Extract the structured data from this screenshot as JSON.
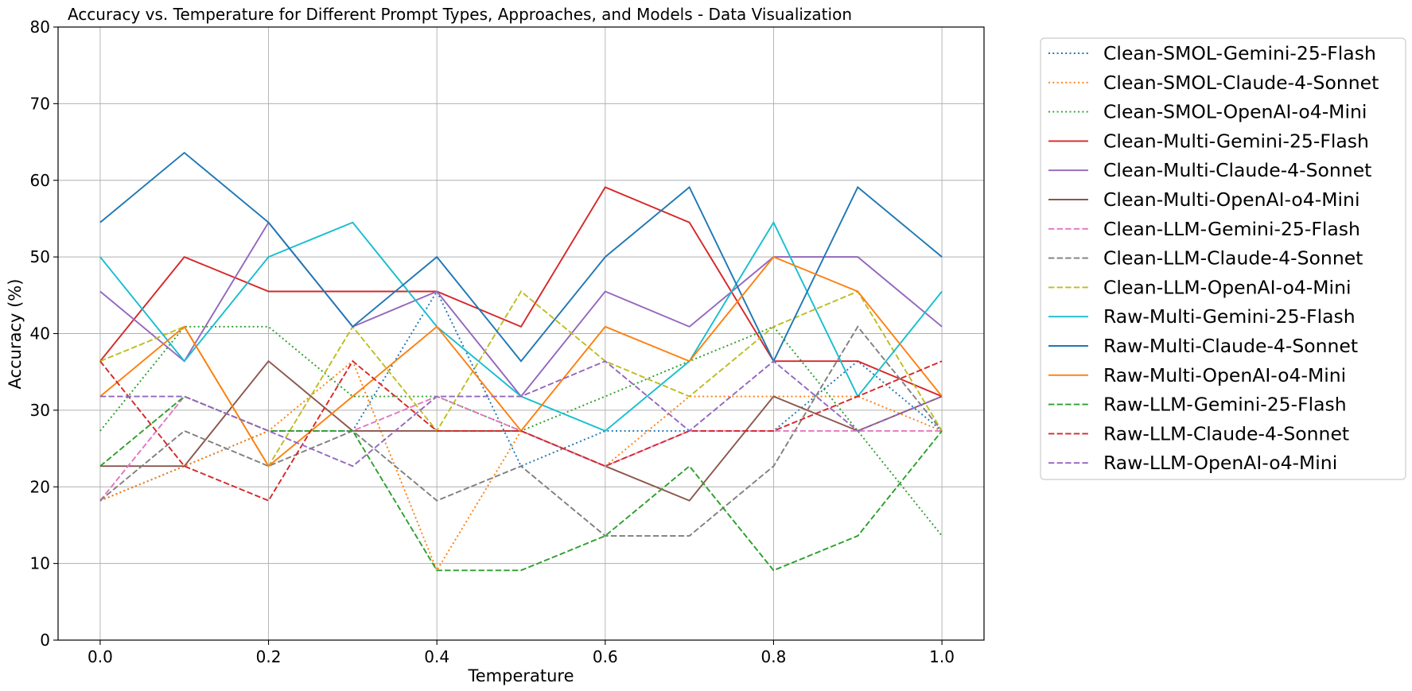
{
  "chart_data": {
    "type": "line",
    "title": "Accuracy vs. Temperature for Different Prompt Types, Approaches, and Models - Data Visualization",
    "xlabel": "Temperature",
    "ylabel": "Accuracy (%)",
    "xlim": [
      -0.05,
      1.05
    ],
    "ylim": [
      0,
      80
    ],
    "xticks": [
      "0.0",
      "0.2",
      "0.4",
      "0.6",
      "0.8",
      "1.0"
    ],
    "yticks": [
      "0",
      "10",
      "20",
      "30",
      "40",
      "50",
      "60",
      "70",
      "80"
    ],
    "grid": true,
    "legend_position": "outside-right",
    "x": [
      0.0,
      0.1,
      0.2,
      0.3,
      0.4,
      0.5,
      0.6,
      0.7,
      0.8,
      0.9,
      1.0
    ],
    "series": [
      {
        "name": "Clean-SMOL-Gemini-25-Flash",
        "color": "#1f77b4",
        "style": "dotted",
        "values": [
          18.2,
          22.7,
          27.3,
          27.3,
          45.5,
          22.7,
          27.3,
          27.3,
          27.3,
          36.4,
          27.3
        ]
      },
      {
        "name": "Clean-SMOL-Claude-4-Sonnet",
        "color": "#ff7f0e",
        "style": "dotted",
        "values": [
          18.2,
          22.7,
          27.3,
          36.4,
          9.1,
          27.3,
          22.7,
          31.8,
          31.8,
          31.8,
          27.3
        ]
      },
      {
        "name": "Clean-SMOL-OpenAI-o4-Mini",
        "color": "#2ca02c",
        "style": "dotted",
        "values": [
          27.3,
          40.9,
          40.9,
          31.8,
          31.8,
          27.3,
          31.8,
          36.4,
          40.9,
          27.3,
          13.6
        ]
      },
      {
        "name": "Clean-Multi-Gemini-25-Flash",
        "color": "#d62728",
        "style": "solid",
        "values": [
          36.4,
          50.0,
          45.5,
          45.5,
          45.5,
          40.9,
          59.1,
          54.5,
          36.4,
          36.4,
          31.8
        ]
      },
      {
        "name": "Clean-Multi-Claude-4-Sonnet",
        "color": "#9467bd",
        "style": "solid",
        "values": [
          45.5,
          36.4,
          54.5,
          40.9,
          45.5,
          31.8,
          45.5,
          40.9,
          50.0,
          50.0,
          40.9
        ]
      },
      {
        "name": "Clean-Multi-OpenAI-o4-Mini",
        "color": "#8c564b",
        "style": "solid",
        "values": [
          22.7,
          22.7,
          36.4,
          27.3,
          27.3,
          27.3,
          22.7,
          18.2,
          31.8,
          27.3,
          31.8
        ]
      },
      {
        "name": "Clean-LLM-Gemini-25-Flash",
        "color": "#e377c2",
        "style": "dashed",
        "values": [
          18.2,
          31.8,
          27.3,
          27.3,
          31.8,
          27.3,
          22.7,
          27.3,
          27.3,
          27.3,
          27.3
        ]
      },
      {
        "name": "Clean-LLM-Claude-4-Sonnet",
        "color": "#7f7f7f",
        "style": "dashed",
        "values": [
          18.2,
          27.3,
          22.7,
          27.3,
          18.2,
          22.7,
          13.6,
          13.6,
          22.7,
          40.9,
          27.3
        ]
      },
      {
        "name": "Clean-LLM-OpenAI-o4-Mini",
        "color": "#bcbd22",
        "style": "dashed",
        "values": [
          36.4,
          40.9,
          22.7,
          40.9,
          27.3,
          45.5,
          36.4,
          31.8,
          40.9,
          45.5,
          27.3
        ]
      },
      {
        "name": "Raw-Multi-Gemini-25-Flash",
        "color": "#17becf",
        "style": "solid",
        "values": [
          50.0,
          36.4,
          50.0,
          54.5,
          40.9,
          31.8,
          27.3,
          36.4,
          54.5,
          31.8,
          45.5
        ]
      },
      {
        "name": "Raw-Multi-Claude-4-Sonnet",
        "color": "#1f77b4",
        "style": "solid",
        "values": [
          54.5,
          63.6,
          54.5,
          40.9,
          50.0,
          36.4,
          50.0,
          59.1,
          36.4,
          59.1,
          50.0
        ]
      },
      {
        "name": "Raw-Multi-OpenAI-o4-Mini",
        "color": "#ff7f0e",
        "style": "solid",
        "values": [
          31.8,
          40.9,
          22.7,
          31.8,
          40.9,
          27.3,
          40.9,
          36.4,
          50.0,
          45.5,
          31.8
        ]
      },
      {
        "name": "Raw-LLM-Gemini-25-Flash",
        "color": "#2ca02c",
        "style": "dashed",
        "values": [
          22.7,
          31.8,
          27.3,
          27.3,
          9.1,
          9.1,
          13.6,
          22.7,
          9.1,
          13.6,
          27.3
        ]
      },
      {
        "name": "Raw-LLM-Claude-4-Sonnet",
        "color": "#d62728",
        "style": "dashed",
        "values": [
          36.4,
          22.7,
          18.2,
          36.4,
          27.3,
          27.3,
          22.7,
          27.3,
          27.3,
          31.8,
          36.4
        ]
      },
      {
        "name": "Raw-LLM-OpenAI-o4-Mini",
        "color": "#9467bd",
        "style": "dashed",
        "values": [
          31.8,
          31.8,
          27.3,
          22.7,
          31.8,
          31.8,
          36.4,
          27.3,
          36.4,
          27.3,
          31.8
        ]
      }
    ]
  }
}
